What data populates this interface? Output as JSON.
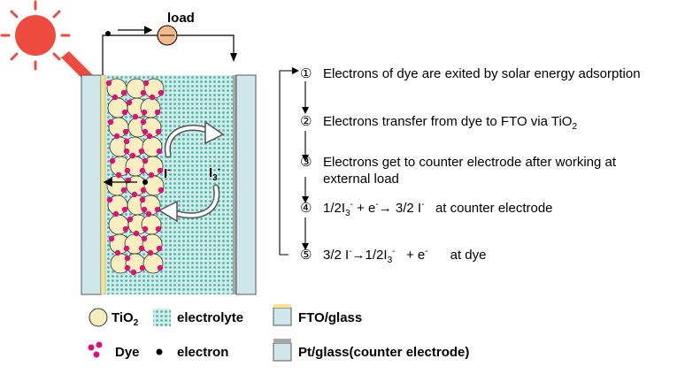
{
  "load": {
    "label": "load"
  },
  "ions": {
    "iodide": {
      "base": "I",
      "sup": "-"
    },
    "triiodide": {
      "base": "I",
      "sub": "3",
      "sup": "-"
    }
  },
  "steps": [
    {
      "num": "①",
      "text": "Electrons of dye are exited by solar energy adsorption"
    },
    {
      "num": "②",
      "text_a": "Electrons transfer from dye to FTO via TiO",
      "text_sub": "2"
    },
    {
      "num": "③",
      "line1": "Electrons get to counter electrode after working at",
      "line2": "external load"
    },
    {
      "num": "④",
      "p1": "1/2I",
      "p1_sub": "3",
      "p1_sup": "-",
      "p2": " + e",
      "p2_sup": "-",
      "arrow": "→",
      "p3": " 3/2 I",
      "p3_sup": "-",
      "p4": "   at counter electrode"
    },
    {
      "num": "⑤",
      "p1": "3/2 I",
      "p1_sup": "-",
      "arrow": "→",
      "p2": "1/2I",
      "p2_sub": "3",
      "p2_sup": "-",
      "p3": "   + e",
      "p3_sup": "-",
      "p4": "      at dye"
    }
  ],
  "legend": {
    "tio2": {
      "label": "TiO",
      "sub": "2"
    },
    "electrolyte": "electrolyte",
    "fto": "FTO/glass",
    "dye": "Dye",
    "electron": "electron",
    "pt": "Pt/glass(counter electrode)"
  },
  "colors": {
    "sun": "#ee4b3e",
    "electrolyte": "#7fd0c8",
    "glass": "#cfe6ea",
    "fto_layer": "#f6e38a",
    "pt_layer": "#a8a8a8",
    "tio2": "#f8efc0",
    "dye": "#e0107a"
  },
  "icons": [
    "sun-icon",
    "light-arrow-icon",
    "load-resistor-icon",
    "cycle-arrows-icon"
  ]
}
